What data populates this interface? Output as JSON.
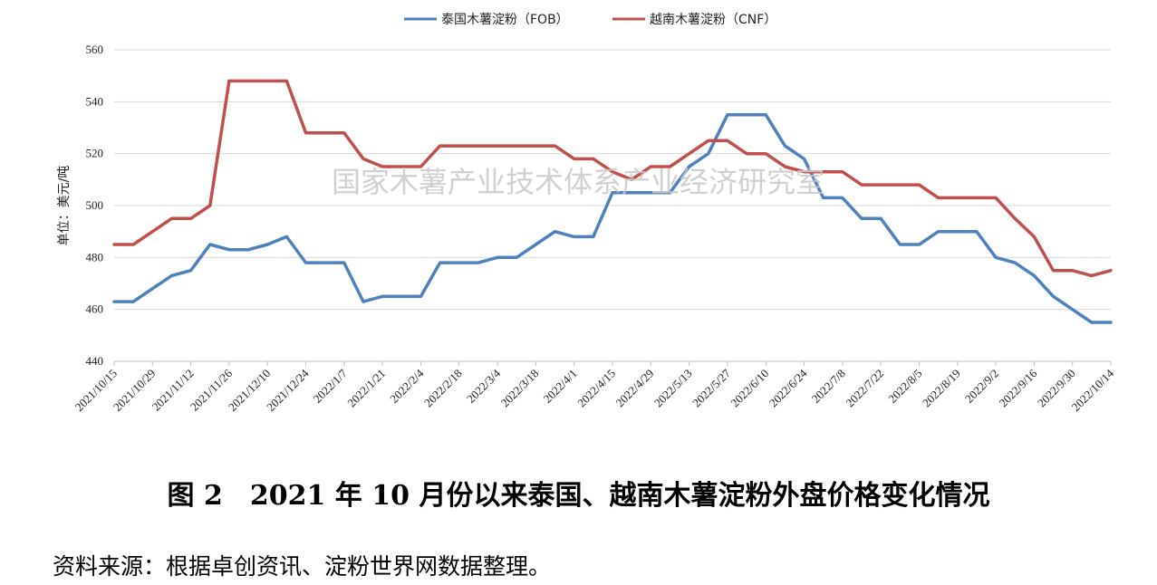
{
  "chart_data": {
    "type": "line",
    "title": "",
    "ylabel": "单位：美元/吨",
    "ylim": [
      440,
      560
    ],
    "yticks": [
      440,
      460,
      480,
      500,
      520,
      540,
      560
    ],
    "grid": "horizontal",
    "legend_position": "top-center",
    "xtick_labels": [
      "2021/10/15",
      "2021/10/29",
      "2021/11/12",
      "2021/11/26",
      "2021/12/10",
      "2021/12/24",
      "2022/1/7",
      "2022/1/21",
      "2022/2/4",
      "2022/2/18",
      "2022/3/4",
      "2022/3/18",
      "2022/4/1",
      "2022/4/15",
      "2022/4/29",
      "2022/5/13",
      "2022/5/27",
      "2022/6/10",
      "2022/6/24",
      "2022/7/8",
      "2022/7/22",
      "2022/8/5",
      "2022/8/19",
      "2022/9/2",
      "2022/9/16",
      "2022/9/30",
      "2022/10/14"
    ],
    "x": [
      "2021/10/15",
      "2021/10/22",
      "2021/10/29",
      "2021/11/5",
      "2021/11/12",
      "2021/11/19",
      "2021/11/26",
      "2021/12/3",
      "2021/12/10",
      "2021/12/17",
      "2021/12/24",
      "2021/12/31",
      "2022/1/7",
      "2022/1/14",
      "2022/1/21",
      "2022/1/28",
      "2022/2/4",
      "2022/2/11",
      "2022/2/18",
      "2022/2/25",
      "2022/3/4",
      "2022/3/11",
      "2022/3/18",
      "2022/3/25",
      "2022/4/1",
      "2022/4/8",
      "2022/4/15",
      "2022/4/22",
      "2022/4/29",
      "2022/5/6",
      "2022/5/13",
      "2022/5/20",
      "2022/5/27",
      "2022/6/3",
      "2022/6/10",
      "2022/6/17",
      "2022/6/24",
      "2022/7/1",
      "2022/7/8",
      "2022/7/15",
      "2022/7/22",
      "2022/7/29",
      "2022/8/5",
      "2022/8/12",
      "2022/8/19",
      "2022/8/26",
      "2022/9/2",
      "2022/9/9",
      "2022/9/16",
      "2022/9/23",
      "2022/9/30",
      "2022/10/7",
      "2022/10/14"
    ],
    "series": [
      {
        "name": "泰国木薯淀粉（FOB）",
        "color": "#4f81bd",
        "values": [
          463,
          463,
          468,
          473,
          475,
          485,
          483,
          483,
          485,
          488,
          478,
          478,
          478,
          463,
          465,
          465,
          465,
          478,
          478,
          478,
          480,
          480,
          485,
          490,
          488,
          488,
          505,
          505,
          505,
          505,
          515,
          520,
          535,
          535,
          535,
          523,
          518,
          503,
          503,
          495,
          495,
          485,
          485,
          490,
          490,
          490,
          480,
          478,
          473,
          465,
          460,
          455,
          455
        ]
      },
      {
        "name": "越南木薯淀粉（CNF）",
        "color": "#c0504d",
        "values": [
          485,
          485,
          490,
          495,
          495,
          500,
          548,
          548,
          548,
          548,
          528,
          528,
          528,
          518,
          515,
          515,
          515,
          523,
          523,
          523,
          523,
          523,
          523,
          523,
          518,
          518,
          513,
          510,
          515,
          515,
          520,
          525,
          525,
          520,
          520,
          515,
          513,
          513,
          513,
          508,
          508,
          508,
          508,
          503,
          503,
          503,
          503,
          495,
          488,
          475,
          475,
          473,
          475
        ]
      }
    ]
  },
  "watermark": "国家木薯产业技术体系产业经济研究室",
  "caption": "图 2　2021 年 10 月份以来泰国、越南木薯淀粉外盘价格变化情况",
  "source": "资料来源：根据卓创资讯、淀粉世界网数据整理。"
}
